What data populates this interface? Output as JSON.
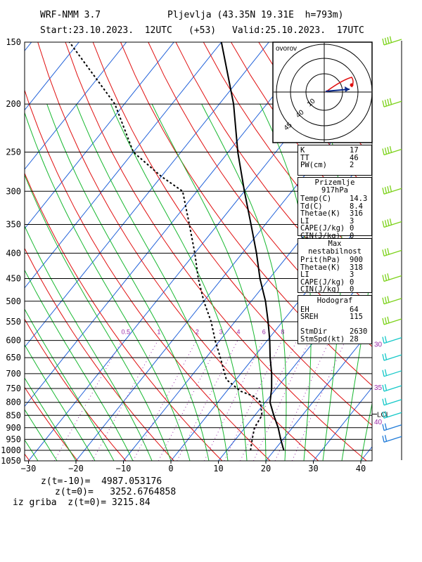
{
  "header": {
    "model": "WRF-NMM 3.7",
    "station": "Pljevlja (43.35N 19.31E  h=793m)",
    "start": "Start:23.10.2023.  12UTC",
    "offset": "(+53)",
    "valid": "Valid:25.10.2023.  17UTC"
  },
  "footer": {
    "line1": "z(t=-10)=  4987.053176",
    "line2": "z(t=0)=   3252.6764858",
    "line3": "iz griba  z(t=0)= 3215.84"
  },
  "hodograph": {
    "title": "ovorov",
    "ring_labels": [
      "10",
      "40",
      "45"
    ]
  },
  "indices": [
    {
      "title": "",
      "rows": [
        [
          "K",
          "17"
        ],
        [
          "TT",
          "46"
        ],
        [
          "PW(cm)",
          "2"
        ]
      ]
    },
    {
      "title": "Prizemlje 917hPa",
      "rows": [
        [
          "Temp(C)",
          "14.3"
        ],
        [
          "Td(C)",
          "8.4"
        ],
        [
          "Thetae(K)",
          "316"
        ],
        [
          "LI",
          "3"
        ],
        [
          "CAPE(J/kg)",
          "0"
        ],
        [
          "CIN(J/kg)",
          "0"
        ]
      ]
    },
    {
      "title": "Max nestabilnost",
      "rows": [
        [
          "Prit(hPa)",
          "900"
        ],
        [
          "Thetae(K)",
          "318"
        ],
        [
          "LI",
          "3"
        ],
        [
          "CAPE(J/kg)",
          "0"
        ],
        [
          "CIN(J/kg)",
          "0"
        ]
      ]
    },
    {
      "title": "Hodograf",
      "rows": [
        [
          "EH",
          "64"
        ],
        [
          "SREH",
          "115"
        ],
        [
          "",
          ""
        ],
        [
          "StmDir",
          "2630"
        ],
        [
          "StmSpd(kt)",
          "28"
        ]
      ]
    }
  ],
  "chart_data": {
    "type": "line",
    "title": "",
    "xlabel": "",
    "ylabel": "",
    "xlim": [
      -30,
      42
    ],
    "ylim": [
      1050,
      150
    ],
    "y_scale": "log",
    "pressure_ticks": [
      150,
      200,
      250,
      300,
      350,
      400,
      450,
      500,
      550,
      600,
      650,
      700,
      750,
      800,
      850,
      900,
      950,
      1000,
      1050
    ],
    "temp_ticks": [
      -30,
      -20,
      -10,
      0,
      10,
      20,
      30,
      40
    ],
    "mixing_ratio_labels": [
      "0.5",
      "1",
      "2",
      "3",
      "4",
      "6",
      "8"
    ],
    "right_labels": [
      {
        "text": "30",
        "p": 610
      },
      {
        "text": "35",
        "p": 745
      },
      {
        "text": "LCL",
        "p": 845
      },
      {
        "text": "40",
        "p": 875
      }
    ],
    "series": [
      {
        "values": [
          [
            1000,
            22.0
          ],
          [
            950,
            19.5
          ],
          [
            900,
            17.0
          ],
          [
            850,
            14.0
          ],
          [
            800,
            11.0
          ],
          [
            750,
            9.0
          ],
          [
            700,
            6.5
          ],
          [
            650,
            3.5
          ],
          [
            600,
            0.5
          ],
          [
            550,
            -3.0
          ],
          [
            500,
            -7.0
          ],
          [
            450,
            -12.0
          ],
          [
            400,
            -17.0
          ],
          [
            350,
            -23.0
          ],
          [
            300,
            -30.0
          ],
          [
            250,
            -38.0
          ],
          [
            200,
            -47.0
          ],
          [
            150,
            -60.0
          ]
        ]
      },
      {
        "values": [
          [
            1000,
            15.0
          ],
          [
            950,
            13.5
          ],
          [
            900,
            12.0
          ],
          [
            850,
            11.5
          ],
          [
            800,
            9.0
          ],
          [
            780,
            7.0
          ],
          [
            760,
            3.0
          ],
          [
            720,
            -2.0
          ],
          [
            650,
            -7.0
          ],
          [
            600,
            -11.0
          ],
          [
            550,
            -15.0
          ],
          [
            500,
            -20.0
          ],
          [
            450,
            -25.0
          ],
          [
            400,
            -30.0
          ],
          [
            350,
            -36.0
          ],
          [
            300,
            -43.0
          ],
          [
            280,
            -50.0
          ],
          [
            250,
            -60.0
          ],
          [
            200,
            -72.0
          ],
          [
            150,
            -92.0
          ]
        ]
      }
    ],
    "wind_barbs": [
      150,
      200,
      250,
      300,
      350,
      400,
      450,
      500,
      550,
      600,
      650,
      700,
      750,
      800,
      850,
      900,
      950
    ]
  }
}
